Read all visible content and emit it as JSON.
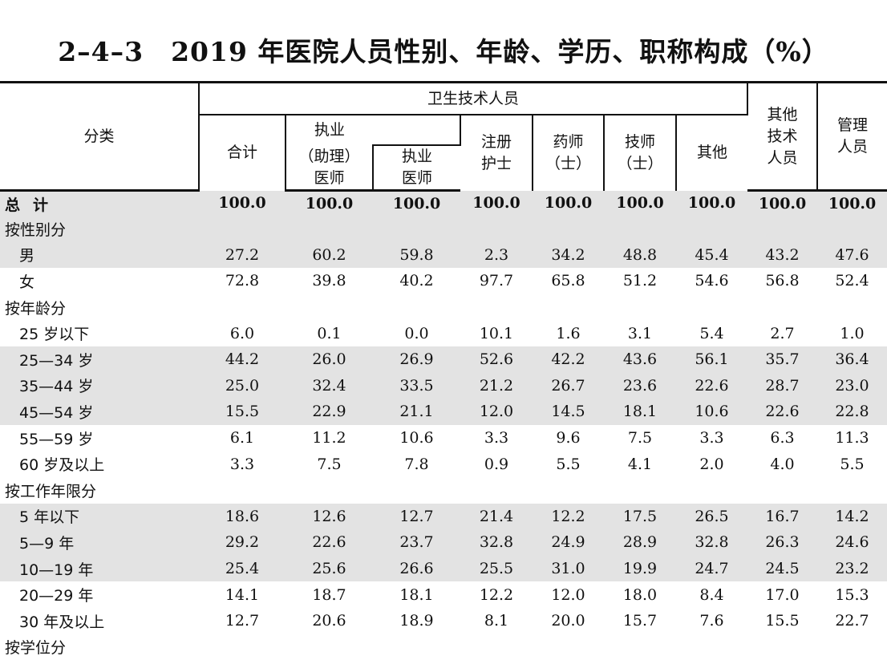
{
  "title": "2–4–3　2019 年医院人员性别、年龄、学历、职称构成（%）",
  "header": {
    "category": "分类",
    "health_tech": "卫生技术人员",
    "total": "合计",
    "licensed_asst_l1": "执业",
    "licensed_asst_l2": "（助理）",
    "licensed_asst_l3": "医师",
    "licensed_doc_l1": "执业",
    "licensed_doc_l2": "医师",
    "nurse_l1": "注册",
    "nurse_l2": "护士",
    "pharm_l1": "药师",
    "pharm_l2": "（士）",
    "tech_l1": "技师",
    "tech_l2": "（士）",
    "other": "其他",
    "other_tech_l1": "其他",
    "other_tech_l2": "技术",
    "other_tech_l3": "人员",
    "mgmt_l1": "管理",
    "mgmt_l2": "人员"
  },
  "rows": [
    {
      "label_a": "总",
      "label_b": "计",
      "values": [
        "100.0",
        "100.0",
        "100.0",
        "100.0",
        "100.0",
        "100.0",
        "100.0",
        "100.0",
        "100.0"
      ]
    },
    {
      "label": "按性别分"
    },
    {
      "label": "男",
      "values": [
        "27.2",
        "60.2",
        "59.8",
        "2.3",
        "34.2",
        "48.8",
        "45.4",
        "43.2",
        "47.6"
      ]
    },
    {
      "label": "女",
      "values": [
        "72.8",
        "39.8",
        "40.2",
        "97.7",
        "65.8",
        "51.2",
        "54.6",
        "56.8",
        "52.4"
      ]
    },
    {
      "label": "按年龄分"
    },
    {
      "label": "25 岁以下",
      "values": [
        "6.0",
        "0.1",
        "0.0",
        "10.1",
        "1.6",
        "3.1",
        "5.4",
        "2.7",
        "1.0"
      ]
    },
    {
      "label": "25—34 岁",
      "values": [
        "44.2",
        "26.0",
        "26.9",
        "52.6",
        "42.2",
        "43.6",
        "56.1",
        "35.7",
        "36.4"
      ]
    },
    {
      "label": "35—44 岁",
      "values": [
        "25.0",
        "32.4",
        "33.5",
        "21.2",
        "26.7",
        "23.6",
        "22.6",
        "28.7",
        "23.0"
      ]
    },
    {
      "label": "45—54 岁",
      "values": [
        "15.5",
        "22.9",
        "21.1",
        "12.0",
        "14.5",
        "18.1",
        "10.6",
        "22.6",
        "22.8"
      ]
    },
    {
      "label": "55—59 岁",
      "values": [
        "6.1",
        "11.2",
        "10.6",
        "3.3",
        "9.6",
        "7.5",
        "3.3",
        "6.3",
        "11.3"
      ]
    },
    {
      "label": "60 岁及以上",
      "values": [
        "3.3",
        "7.5",
        "7.8",
        "0.9",
        "5.5",
        "4.1",
        "2.0",
        "4.0",
        "5.5"
      ]
    },
    {
      "label": "按工作年限分"
    },
    {
      "label": "5 年以下",
      "values": [
        "18.6",
        "12.6",
        "12.7",
        "21.4",
        "12.2",
        "17.5",
        "26.5",
        "16.7",
        "14.2"
      ]
    },
    {
      "label": "5—9 年",
      "values": [
        "29.2",
        "22.6",
        "23.7",
        "32.8",
        "24.9",
        "28.9",
        "32.8",
        "26.3",
        "24.6"
      ]
    },
    {
      "label": "10—19 年",
      "values": [
        "25.4",
        "25.6",
        "26.6",
        "25.5",
        "31.0",
        "19.9",
        "24.7",
        "24.5",
        "23.2"
      ]
    },
    {
      "label": "20—29 年",
      "values": [
        "14.1",
        "18.7",
        "18.1",
        "12.2",
        "12.0",
        "18.0",
        "8.4",
        "17.0",
        "15.3"
      ]
    },
    {
      "label": "30 年及以上",
      "values": [
        "12.7",
        "20.6",
        "18.9",
        "8.1",
        "20.0",
        "15.7",
        "7.6",
        "15.5",
        "22.7"
      ]
    },
    {
      "label": "按学位分"
    }
  ]
}
